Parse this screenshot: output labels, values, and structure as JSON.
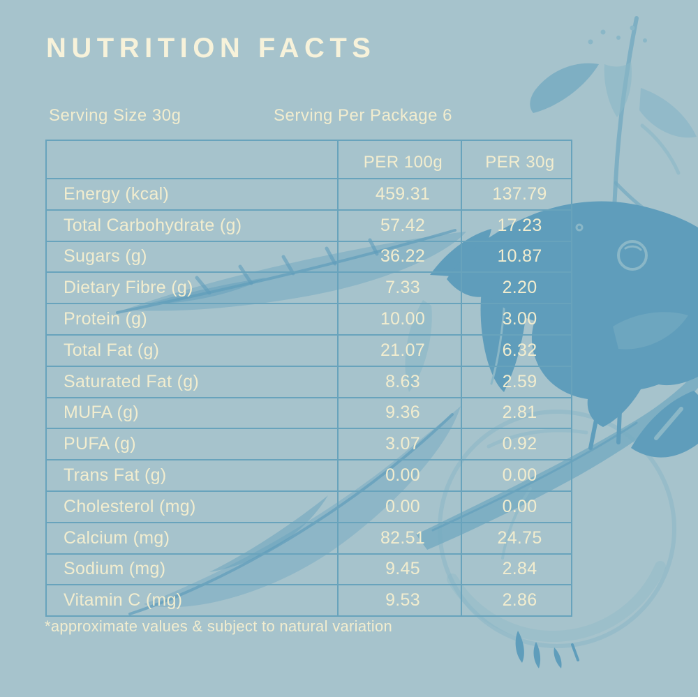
{
  "header": {
    "title": "NUTRITION FACTS",
    "serving_size": "Serving Size 30g",
    "serving_per_package": "Serving Per Package 6"
  },
  "table": {
    "columns": [
      "",
      "PER 100g",
      "PER 30g"
    ],
    "rows": [
      {
        "label": "Energy (kcal)",
        "per_100g": "459.31",
        "per_30g": "137.79"
      },
      {
        "label": "Total Carbohydrate (g)",
        "per_100g": "57.42",
        "per_30g": "17.23"
      },
      {
        "label": "Sugars (g)",
        "per_100g": "36.22",
        "per_30g": "10.87"
      },
      {
        "label": "Dietary Fibre (g)",
        "per_100g": "7.33",
        "per_30g": "2.20"
      },
      {
        "label": "Protein (g)",
        "per_100g": "10.00",
        "per_30g": "3.00"
      },
      {
        "label": "Total Fat (g)",
        "per_100g": "21.07",
        "per_30g": "6.32"
      },
      {
        "label": "Saturated Fat (g)",
        "per_100g": "8.63",
        "per_30g": "2.59"
      },
      {
        "label": "MUFA (g)",
        "per_100g": "9.36",
        "per_30g": "2.81"
      },
      {
        "label": "PUFA (g)",
        "per_100g": "3.07",
        "per_30g": "0.92"
      },
      {
        "label": "Trans Fat (g)",
        "per_100g": "0.00",
        "per_30g": "0.00"
      },
      {
        "label": "Cholesterol (mg)",
        "per_100g": "0.00",
        "per_30g": "0.00"
      },
      {
        "label": "Calcium (mg)",
        "per_100g": "82.51",
        "per_30g": "24.75"
      },
      {
        "label": "Sodium (mg)",
        "per_100g": "9.45",
        "per_30g": "2.84"
      },
      {
        "label": "Vitamin C (mg)",
        "per_100g": "9.53",
        "per_30g": "2.86"
      }
    ]
  },
  "footer": {
    "note": "*approximate values & subject to natural variation"
  },
  "illustration": {
    "description": "sketched bird perched on a branch with leaves, feathers, fruit and seeds"
  },
  "colors": {
    "background": "#a6c3cc",
    "text_cream": "#f2edcf",
    "title_cream": "#f7f2da",
    "table_border": "#68a3bc",
    "illustration_dark": "#5f9dbb",
    "illustration_mid": "#74aac1",
    "illustration_light": "#8ab7c7"
  }
}
